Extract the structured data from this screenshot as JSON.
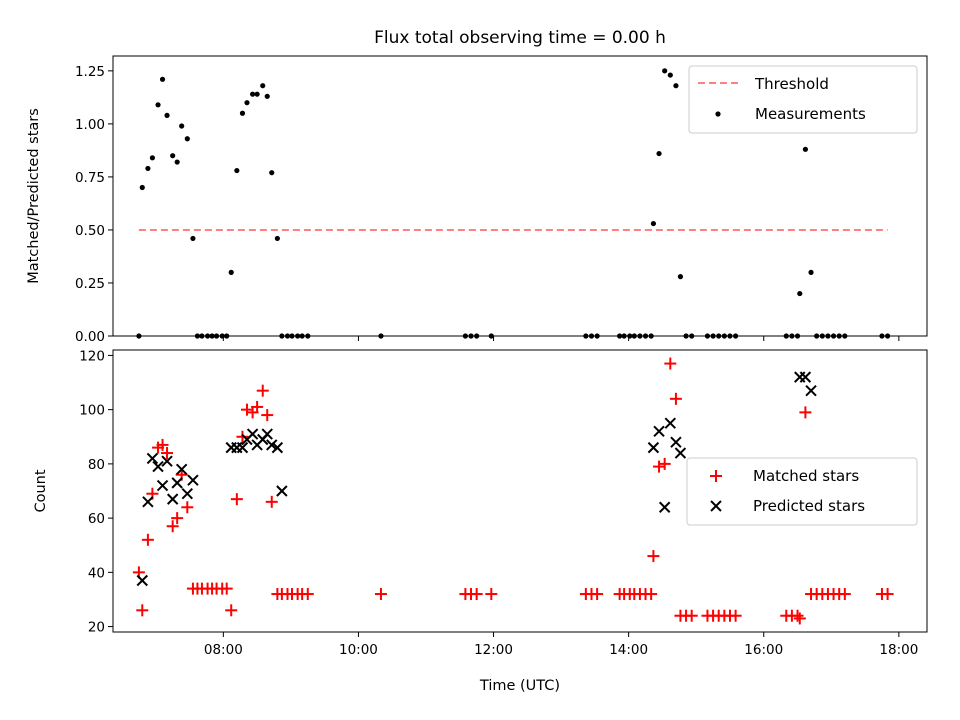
{
  "chart_data": [
    {
      "type": "scatter",
      "title": "Flux total observing time = 0.00 h",
      "xlabel": "",
      "ylabel": "Matched/Predicted stars",
      "xlim": [
        "06:22",
        "18:25"
      ],
      "ylim": [
        0.0,
        1.32
      ],
      "yticks": [
        "0.00",
        "0.25",
        "0.50",
        "0.75",
        "1.00",
        "1.25"
      ],
      "xticks": [
        "08:00",
        "10:00",
        "12:00",
        "14:00",
        "16:00",
        "18:00"
      ],
      "xtick_labels_visible": false,
      "grid": false,
      "legend_position": "top-right",
      "threshold": {
        "name": "Threshold",
        "value": 0.5,
        "x_range": [
          "06:45",
          "17:50"
        ],
        "color": "#ff8080"
      },
      "series": [
        {
          "name": "Measurements",
          "color": "#000000",
          "marker": "dot",
          "points": [
            [
              "06:45",
              0.0
            ],
            [
              "06:48",
              0.7
            ],
            [
              "06:53",
              0.79
            ],
            [
              "06:57",
              0.84
            ],
            [
              "07:02",
              1.09
            ],
            [
              "07:06",
              1.21
            ],
            [
              "07:10",
              1.04
            ],
            [
              "07:15",
              0.85
            ],
            [
              "07:19",
              0.82
            ],
            [
              "07:23",
              0.99
            ],
            [
              "07:28",
              0.93
            ],
            [
              "07:33",
              0.46
            ],
            [
              "07:37",
              0.0
            ],
            [
              "07:41",
              0.0
            ],
            [
              "07:46",
              0.0
            ],
            [
              "07:50",
              0.0
            ],
            [
              "07:54",
              0.0
            ],
            [
              "07:59",
              0.0
            ],
            [
              "08:03",
              0.0
            ],
            [
              "08:07",
              0.3
            ],
            [
              "08:12",
              0.78
            ],
            [
              "08:17",
              1.05
            ],
            [
              "08:21",
              1.1
            ],
            [
              "08:26",
              1.14
            ],
            [
              "08:30",
              1.14
            ],
            [
              "08:35",
              1.18
            ],
            [
              "08:39",
              1.13
            ],
            [
              "08:43",
              0.77
            ],
            [
              "08:48",
              0.46
            ],
            [
              "08:52",
              0.0
            ],
            [
              "08:57",
              0.0
            ],
            [
              "09:01",
              0.0
            ],
            [
              "09:06",
              0.0
            ],
            [
              "09:10",
              0.0
            ],
            [
              "09:15",
              0.0
            ],
            [
              "10:20",
              0.0
            ],
            [
              "11:35",
              0.0
            ],
            [
              "11:40",
              0.0
            ],
            [
              "11:45",
              0.0
            ],
            [
              "11:58",
              0.0
            ],
            [
              "13:22",
              0.0
            ],
            [
              "13:27",
              0.0
            ],
            [
              "13:32",
              0.0
            ],
            [
              "13:52",
              0.0
            ],
            [
              "13:56",
              0.0
            ],
            [
              "14:01",
              0.0
            ],
            [
              "14:05",
              0.0
            ],
            [
              "14:10",
              0.0
            ],
            [
              "14:15",
              0.0
            ],
            [
              "14:20",
              0.0
            ],
            [
              "14:22",
              0.53
            ],
            [
              "14:27",
              0.86
            ],
            [
              "14:32",
              1.25
            ],
            [
              "14:37",
              1.23
            ],
            [
              "14:42",
              1.18
            ],
            [
              "14:46",
              0.28
            ],
            [
              "14:51",
              0.0
            ],
            [
              "14:56",
              0.0
            ],
            [
              "15:10",
              0.0
            ],
            [
              "15:15",
              0.0
            ],
            [
              "15:20",
              0.0
            ],
            [
              "15:25",
              0.0
            ],
            [
              "15:30",
              0.0
            ],
            [
              "15:35",
              0.0
            ],
            [
              "16:20",
              0.0
            ],
            [
              "16:25",
              0.0
            ],
            [
              "16:30",
              0.0
            ],
            [
              "16:32",
              0.2
            ],
            [
              "16:37",
              0.88
            ],
            [
              "16:42",
              0.3
            ],
            [
              "16:47",
              0.0
            ],
            [
              "16:52",
              0.0
            ],
            [
              "16:57",
              0.0
            ],
            [
              "17:02",
              0.0
            ],
            [
              "17:07",
              0.0
            ],
            [
              "17:12",
              0.0
            ],
            [
              "17:45",
              0.0
            ],
            [
              "17:50",
              0.0
            ]
          ]
        }
      ]
    },
    {
      "type": "scatter",
      "title": "",
      "xlabel": "Time (UTC)",
      "ylabel": "Count",
      "xlim": [
        "06:22",
        "18:25"
      ],
      "ylim": [
        18,
        122
      ],
      "yticks": [
        "20",
        "40",
        "60",
        "80",
        "100",
        "120"
      ],
      "xticks": [
        "08:00",
        "10:00",
        "12:00",
        "14:00",
        "16:00",
        "18:00"
      ],
      "grid": false,
      "legend_position": "center-right",
      "series": [
        {
          "name": "Matched stars",
          "color": "#ff0000",
          "marker": "plus",
          "points": [
            [
              "06:45",
              40
            ],
            [
              "06:48",
              26
            ],
            [
              "06:53",
              52
            ],
            [
              "06:57",
              69
            ],
            [
              "07:02",
              86
            ],
            [
              "07:06",
              87
            ],
            [
              "07:10",
              84
            ],
            [
              "07:15",
              57
            ],
            [
              "07:19",
              60
            ],
            [
              "07:23",
              76
            ],
            [
              "07:28",
              64
            ],
            [
              "07:33",
              34
            ],
            [
              "07:37",
              34
            ],
            [
              "07:41",
              34
            ],
            [
              "07:46",
              34
            ],
            [
              "07:50",
              34
            ],
            [
              "07:54",
              34
            ],
            [
              "07:59",
              34
            ],
            [
              "08:03",
              34
            ],
            [
              "08:07",
              26
            ],
            [
              "08:12",
              67
            ],
            [
              "08:17",
              90
            ],
            [
              "08:21",
              100
            ],
            [
              "08:26",
              99
            ],
            [
              "08:30",
              101
            ],
            [
              "08:35",
              107
            ],
            [
              "08:39",
              98
            ],
            [
              "08:43",
              66
            ],
            [
              "08:48",
              32
            ],
            [
              "08:52",
              32
            ],
            [
              "08:57",
              32
            ],
            [
              "09:01",
              32
            ],
            [
              "09:06",
              32
            ],
            [
              "09:10",
              32
            ],
            [
              "09:15",
              32
            ],
            [
              "10:20",
              32
            ],
            [
              "11:35",
              32
            ],
            [
              "11:40",
              32
            ],
            [
              "11:45",
              32
            ],
            [
              "11:58",
              32
            ],
            [
              "13:22",
              32
            ],
            [
              "13:27",
              32
            ],
            [
              "13:32",
              32
            ],
            [
              "13:52",
              32
            ],
            [
              "13:56",
              32
            ],
            [
              "14:01",
              32
            ],
            [
              "14:05",
              32
            ],
            [
              "14:10",
              32
            ],
            [
              "14:15",
              32
            ],
            [
              "14:20",
              32
            ],
            [
              "14:22",
              46
            ],
            [
              "14:27",
              79
            ],
            [
              "14:32",
              80
            ],
            [
              "14:37",
              117
            ],
            [
              "14:42",
              104
            ],
            [
              "14:46",
              24
            ],
            [
              "14:51",
              24
            ],
            [
              "14:56",
              24
            ],
            [
              "15:10",
              24
            ],
            [
              "15:15",
              24
            ],
            [
              "15:20",
              24
            ],
            [
              "15:25",
              24
            ],
            [
              "15:30",
              24
            ],
            [
              "15:35",
              24
            ],
            [
              "16:20",
              24
            ],
            [
              "16:25",
              24
            ],
            [
              "16:30",
              24
            ],
            [
              "16:32",
              23
            ],
            [
              "16:37",
              99
            ],
            [
              "16:42",
              32
            ],
            [
              "16:47",
              32
            ],
            [
              "16:52",
              32
            ],
            [
              "16:57",
              32
            ],
            [
              "17:02",
              32
            ],
            [
              "17:07",
              32
            ],
            [
              "17:12",
              32
            ],
            [
              "17:45",
              32
            ],
            [
              "17:50",
              32
            ]
          ]
        },
        {
          "name": "Predicted stars",
          "color": "#000000",
          "marker": "x",
          "points": [
            [
              "06:48",
              37
            ],
            [
              "06:53",
              66
            ],
            [
              "06:57",
              82
            ],
            [
              "07:02",
              79
            ],
            [
              "07:06",
              72
            ],
            [
              "07:10",
              81
            ],
            [
              "07:15",
              67
            ],
            [
              "07:19",
              73
            ],
            [
              "07:23",
              78
            ],
            [
              "07:28",
              69
            ],
            [
              "07:33",
              74
            ],
            [
              "08:07",
              86
            ],
            [
              "08:12",
              86
            ],
            [
              "08:17",
              86
            ],
            [
              "08:21",
              89
            ],
            [
              "08:26",
              91
            ],
            [
              "08:30",
              87
            ],
            [
              "08:35",
              89
            ],
            [
              "08:39",
              91
            ],
            [
              "08:43",
              87
            ],
            [
              "08:48",
              86
            ],
            [
              "08:52",
              70
            ],
            [
              "14:22",
              86
            ],
            [
              "14:27",
              92
            ],
            [
              "14:32",
              64
            ],
            [
              "14:37",
              95
            ],
            [
              "14:42",
              88
            ],
            [
              "14:46",
              84
            ],
            [
              "16:32",
              112
            ],
            [
              "16:37",
              112
            ],
            [
              "16:42",
              107
            ]
          ]
        }
      ]
    }
  ]
}
